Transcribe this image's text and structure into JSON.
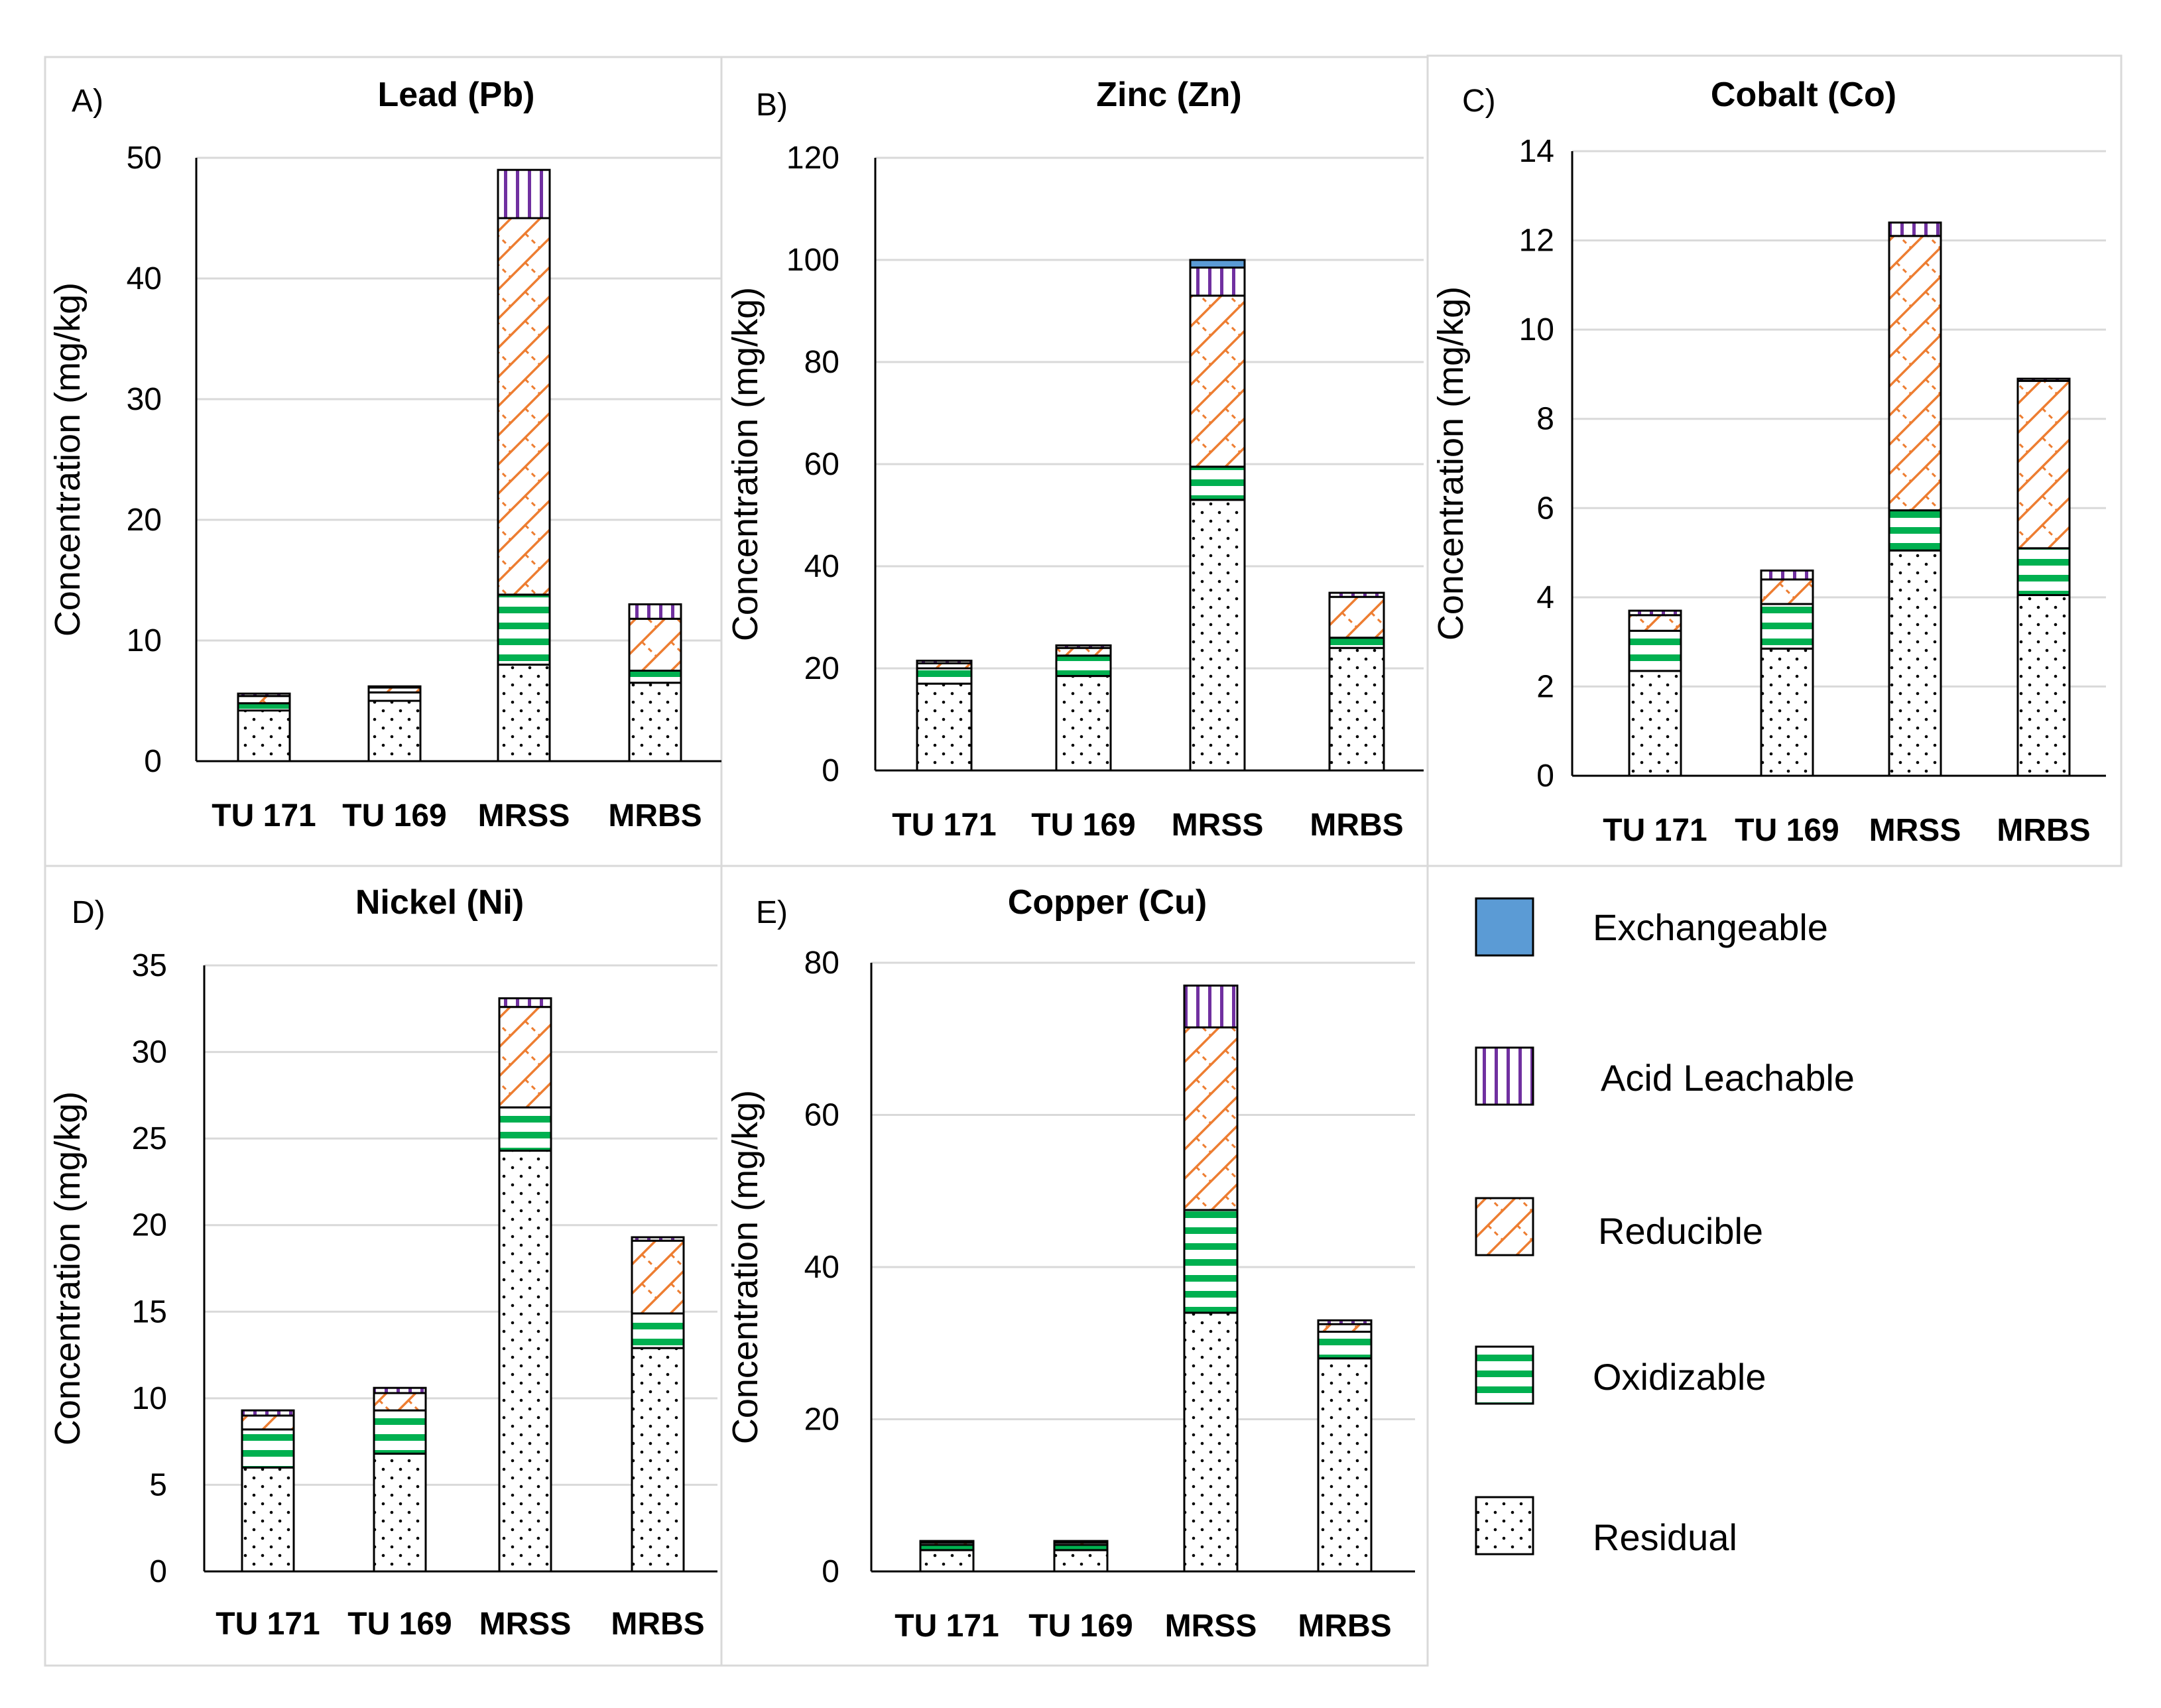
{
  "legend": {
    "items": [
      {
        "key": "exchangeable",
        "label": "Exchangeable"
      },
      {
        "key": "acid",
        "label": "Acid Leachable"
      },
      {
        "key": "reducible",
        "label": "Reducible"
      },
      {
        "key": "oxidizable",
        "label": "Oxidizable"
      },
      {
        "key": "residual",
        "label": "Residual"
      }
    ]
  },
  "colors": {
    "exchangeable": "#5b9bd5",
    "acid": "#7030a0",
    "reducible": "#ed7d31",
    "oxidizable": "#00b050",
    "residual": "#000000",
    "grid": "#d9d9d9",
    "panel_border": "#d9d9d9"
  },
  "chart_data": [
    {
      "type": "bar",
      "stacked": true,
      "letter": "A)",
      "title": "Lead (Pb)",
      "ylabel": "Concentration (mg/kg)",
      "ylim": [
        0,
        50
      ],
      "yticks": [
        0,
        10,
        20,
        30,
        40,
        50
      ],
      "categories": [
        "TU 171",
        "TU 169",
        "MRSS",
        "MRBS"
      ],
      "series": [
        {
          "name": "Residual",
          "key": "residual",
          "values": [
            4.2,
            5.0,
            8.0,
            6.5
          ]
        },
        {
          "name": "Oxidizable",
          "key": "oxidizable",
          "values": [
            0.6,
            0.7,
            5.8,
            1.0
          ]
        },
        {
          "name": "Reducible",
          "key": "reducible",
          "values": [
            0.6,
            0.4,
            31.2,
            4.3
          ]
        },
        {
          "name": "Acid Leachable",
          "key": "acid",
          "values": [
            0.2,
            0.1,
            4.0,
            1.2
          ]
        },
        {
          "name": "Exchangeable",
          "key": "exchangeable",
          "values": [
            0.0,
            0.0,
            0.0,
            0.0
          ]
        }
      ]
    },
    {
      "type": "bar",
      "stacked": true,
      "letter": "B)",
      "title": "Zinc (Zn)",
      "ylabel": "Concentration (mg/kg)",
      "ylim": [
        0,
        120
      ],
      "yticks": [
        0,
        20,
        40,
        60,
        80,
        100,
        120
      ],
      "categories": [
        "TU 171",
        "TU 169",
        "MRSS",
        "MRBS"
      ],
      "series": [
        {
          "name": "Residual",
          "key": "residual",
          "values": [
            17.0,
            18.5,
            53.0,
            24.0
          ]
        },
        {
          "name": "Oxidizable",
          "key": "oxidizable",
          "values": [
            3.0,
            4.0,
            6.5,
            2.0
          ]
        },
        {
          "name": "Reducible",
          "key": "reducible",
          "values": [
            1.0,
            1.5,
            33.5,
            8.0
          ]
        },
        {
          "name": "Acid Leachable",
          "key": "acid",
          "values": [
            0.5,
            0.5,
            5.5,
            0.8
          ]
        },
        {
          "name": "Exchangeable",
          "key": "exchangeable",
          "values": [
            0.0,
            0.0,
            1.5,
            0.0
          ]
        }
      ]
    },
    {
      "type": "bar",
      "stacked": true,
      "letter": "C)",
      "title": "Cobalt (Co)",
      "ylabel": "Concentration (mg/kg)",
      "ylim": [
        0,
        14
      ],
      "yticks": [
        0,
        2,
        4,
        6,
        8,
        10,
        12,
        14
      ],
      "categories": [
        "TU 171",
        "TU 169",
        "MRSS",
        "MRBS"
      ],
      "series": [
        {
          "name": "Residual",
          "key": "residual",
          "values": [
            2.35,
            2.85,
            5.05,
            4.05
          ]
        },
        {
          "name": "Oxidizable",
          "key": "oxidizable",
          "values": [
            0.9,
            1.0,
            0.9,
            1.05
          ]
        },
        {
          "name": "Reducible",
          "key": "reducible",
          "values": [
            0.35,
            0.55,
            6.15,
            3.75
          ]
        },
        {
          "name": "Acid Leachable",
          "key": "acid",
          "values": [
            0.1,
            0.2,
            0.3,
            0.05
          ]
        },
        {
          "name": "Exchangeable",
          "key": "exchangeable",
          "values": [
            0.0,
            0.0,
            0.0,
            0.0
          ]
        }
      ]
    },
    {
      "type": "bar",
      "stacked": true,
      "letter": "D)",
      "title": "Nickel (Ni)",
      "ylabel": "Concentration (mg/kg)",
      "ylim": [
        0,
        35
      ],
      "yticks": [
        0,
        5,
        10,
        15,
        20,
        25,
        30,
        35
      ],
      "categories": [
        "TU 171",
        "TU 169",
        "MRSS",
        "MRBS"
      ],
      "series": [
        {
          "name": "Residual",
          "key": "residual",
          "values": [
            6.0,
            6.8,
            24.3,
            12.9
          ]
        },
        {
          "name": "Oxidizable",
          "key": "oxidizable",
          "values": [
            2.2,
            2.5,
            2.5,
            2.0
          ]
        },
        {
          "name": "Reducible",
          "key": "reducible",
          "values": [
            0.8,
            1.0,
            5.8,
            4.2
          ]
        },
        {
          "name": "Acid Leachable",
          "key": "acid",
          "values": [
            0.3,
            0.3,
            0.5,
            0.2
          ]
        },
        {
          "name": "Exchangeable",
          "key": "exchangeable",
          "values": [
            0.0,
            0.0,
            0.0,
            0.0
          ]
        }
      ]
    },
    {
      "type": "bar",
      "stacked": true,
      "letter": "E)",
      "title": "Copper (Cu)",
      "ylabel": "Concentration (mg/kg)",
      "ylim": [
        0,
        80
      ],
      "yticks": [
        0,
        20,
        40,
        60,
        80
      ],
      "categories": [
        "TU 171",
        "TU 169",
        "MRSS",
        "MRBS"
      ],
      "series": [
        {
          "name": "Residual",
          "key": "residual",
          "values": [
            2.8,
            2.8,
            34.0,
            28.0
          ]
        },
        {
          "name": "Oxidizable",
          "key": "oxidizable",
          "values": [
            0.7,
            0.7,
            13.5,
            3.5
          ]
        },
        {
          "name": "Reducible",
          "key": "reducible",
          "values": [
            0.3,
            0.3,
            24.0,
            1.0
          ]
        },
        {
          "name": "Acid Leachable",
          "key": "acid",
          "values": [
            0.2,
            0.2,
            5.5,
            0.5
          ]
        },
        {
          "name": "Exchangeable",
          "key": "exchangeable",
          "values": [
            0.0,
            0.0,
            0.0,
            0.0
          ]
        }
      ]
    }
  ]
}
